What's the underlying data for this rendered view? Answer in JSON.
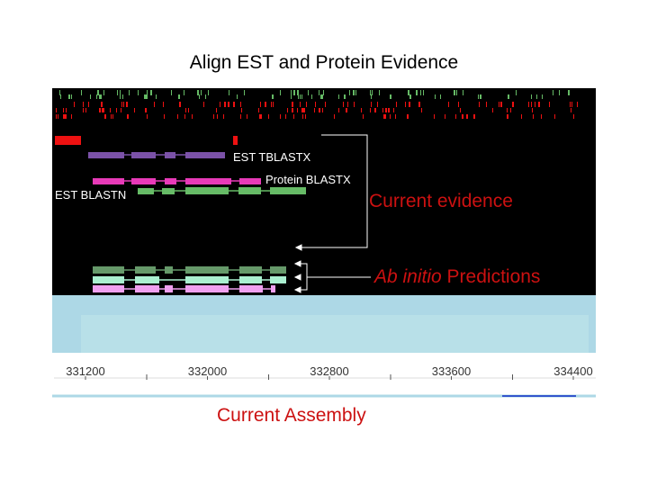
{
  "slide": {
    "title": "Align EST and Protein Evidence",
    "labels": {
      "est_tblastx": "EST TBLASTX",
      "protein_blastx": "Protein BLASTX",
      "est_blastn": "EST BLASTN",
      "current_evidence": "Current evidence",
      "ab_initio_italic": "Ab initio",
      "ab_initio_rest": " Predictions",
      "current_assembly": "Current Assembly"
    }
  },
  "genome_browser": {
    "ruler_ticks": [
      "331200",
      "332000",
      "332800",
      "333600",
      "334400"
    ],
    "colors": {
      "background": "#000000",
      "prediction_panel": "#add8e6",
      "inner_panel": "#b8e0e8",
      "est_tblastx": "#7b52a8",
      "protein_blastx": "#e83ab8",
      "est_blastn": "#66bb66",
      "red_marks": "#ee1111",
      "prediction_gray_green": "#66996a",
      "prediction_mint": "#aaf0d0",
      "prediction_pink": "#f0a0f0",
      "callout_lines": "#ffffff",
      "callout_text": "#cc1111"
    }
  }
}
